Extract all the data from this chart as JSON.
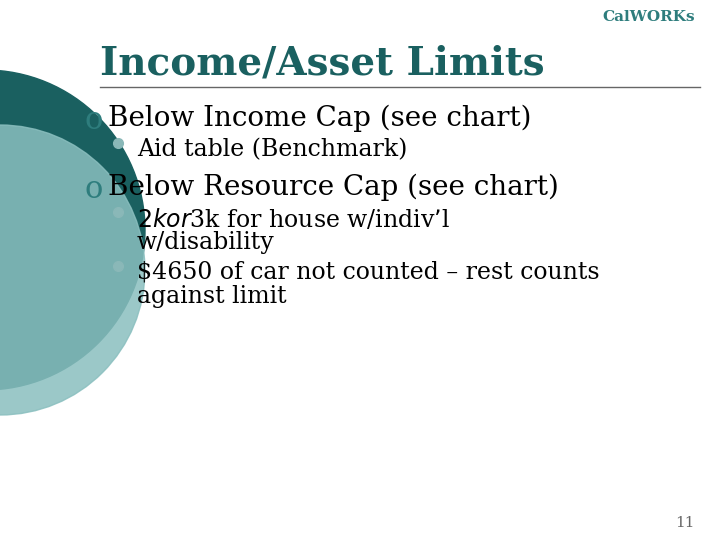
{
  "bg_color": "#ffffff",
  "calworks_color": "#2e7d7d",
  "title_color": "#1a6060",
  "title_text": "Income/Asset Limits",
  "calworks_label": "CalWORKs",
  "line_color": "#666666",
  "bullet_open_color": "#2e7d7d",
  "bullet_filled_color": "#8ab8b8",
  "text_color": "#000000",
  "circle_outer_color": "#1a6060",
  "circle_inner_color": "#8abfbf",
  "slide_number": "11",
  "calworks_fontsize": 11,
  "title_fontsize": 28,
  "main_bullet_fontsize": 20,
  "sub_bullet_fontsize": 17
}
